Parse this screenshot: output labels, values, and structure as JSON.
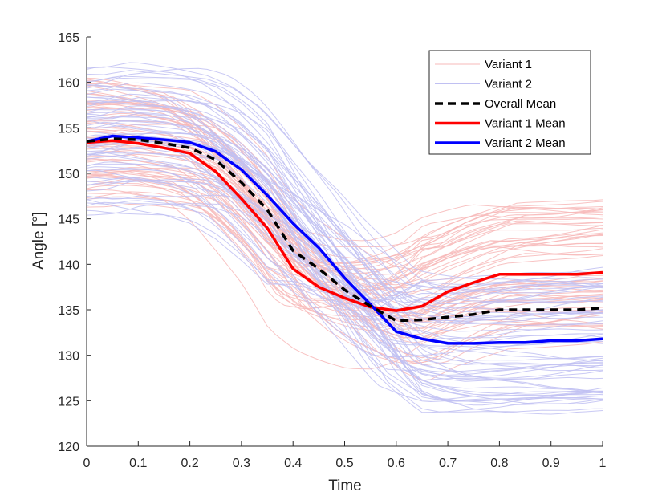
{
  "chart_data": {
    "type": "line",
    "title": "",
    "xlabel": "Time",
    "ylabel": "Angle [°]",
    "xlim": [
      0,
      1
    ],
    "ylim": [
      120,
      165
    ],
    "xticks": [
      0,
      0.1,
      0.2,
      0.3,
      0.4,
      0.5,
      0.6,
      0.7,
      0.8,
      0.9,
      1
    ],
    "xtick_labels": [
      "0",
      "0.1",
      "0.2",
      "0.3",
      "0.4",
      "0.5",
      "0.6",
      "0.7",
      "0.8",
      "0.9",
      "1"
    ],
    "yticks": [
      120,
      125,
      130,
      135,
      140,
      145,
      150,
      155,
      160,
      165
    ],
    "ytick_labels": [
      "120",
      "125",
      "130",
      "135",
      "140",
      "145",
      "150",
      "155",
      "160",
      "165"
    ],
    "grid": false,
    "legend_position": "top-right",
    "legend": [
      {
        "label": "Variant 1",
        "color": "#f7b8b8",
        "style": "thin"
      },
      {
        "label": "Variant 2",
        "color": "#c0c0f2",
        "style": "thin"
      },
      {
        "label": "Overall Mean",
        "color": "#000000",
        "style": "dashed"
      },
      {
        "label": "Variant 1 Mean",
        "color": "#ff0000",
        "style": "thick"
      },
      {
        "label": "Variant 2 Mean",
        "color": "#0000ff",
        "style": "thick"
      }
    ],
    "x": [
      0,
      0.05,
      0.1,
      0.15,
      0.2,
      0.25,
      0.3,
      0.35,
      0.4,
      0.45,
      0.5,
      0.55,
      0.6,
      0.65,
      0.7,
      0.75,
      0.8,
      0.85,
      0.9,
      0.95,
      1
    ],
    "series": [
      {
        "name": "Overall Mean",
        "color": "#000000",
        "dashed": true,
        "values": [
          153.5,
          153.8,
          153.7,
          153.3,
          152.8,
          151.5,
          149.0,
          146.0,
          141.5,
          139.5,
          137.2,
          135.4,
          133.8,
          133.9,
          134.2,
          134.5,
          135.0,
          135.0,
          135.0,
          135.0,
          135.2
        ]
      },
      {
        "name": "Variant 1 Mean",
        "color": "#ff0000",
        "dashed": false,
        "values": [
          153.4,
          153.6,
          153.3,
          152.8,
          152.2,
          150.2,
          147.2,
          144.0,
          139.5,
          137.5,
          136.3,
          135.3,
          134.9,
          135.4,
          137.0,
          138.0,
          138.9,
          138.9,
          138.9,
          138.9,
          139.1
        ]
      },
      {
        "name": "Variant 2 Mean",
        "color": "#0000ff",
        "dashed": false,
        "values": [
          153.5,
          154.1,
          153.9,
          153.7,
          153.4,
          152.4,
          150.4,
          147.6,
          144.5,
          141.8,
          138.5,
          135.6,
          132.6,
          131.8,
          131.3,
          131.3,
          131.4,
          131.4,
          131.6,
          131.6,
          131.8
        ]
      }
    ],
    "background_traces": {
      "description_only": false,
      "groups": [
        {
          "name": "Variant 1",
          "color": "#f7b8b8",
          "count": 60,
          "start_range": [
            147,
            162
          ],
          "end_range": [
            132,
            148
          ]
        },
        {
          "name": "Variant 2",
          "color": "#c0c0f2",
          "count": 60,
          "start_range": [
            147,
            162
          ],
          "end_range": [
            122,
            138
          ]
        }
      ]
    }
  }
}
